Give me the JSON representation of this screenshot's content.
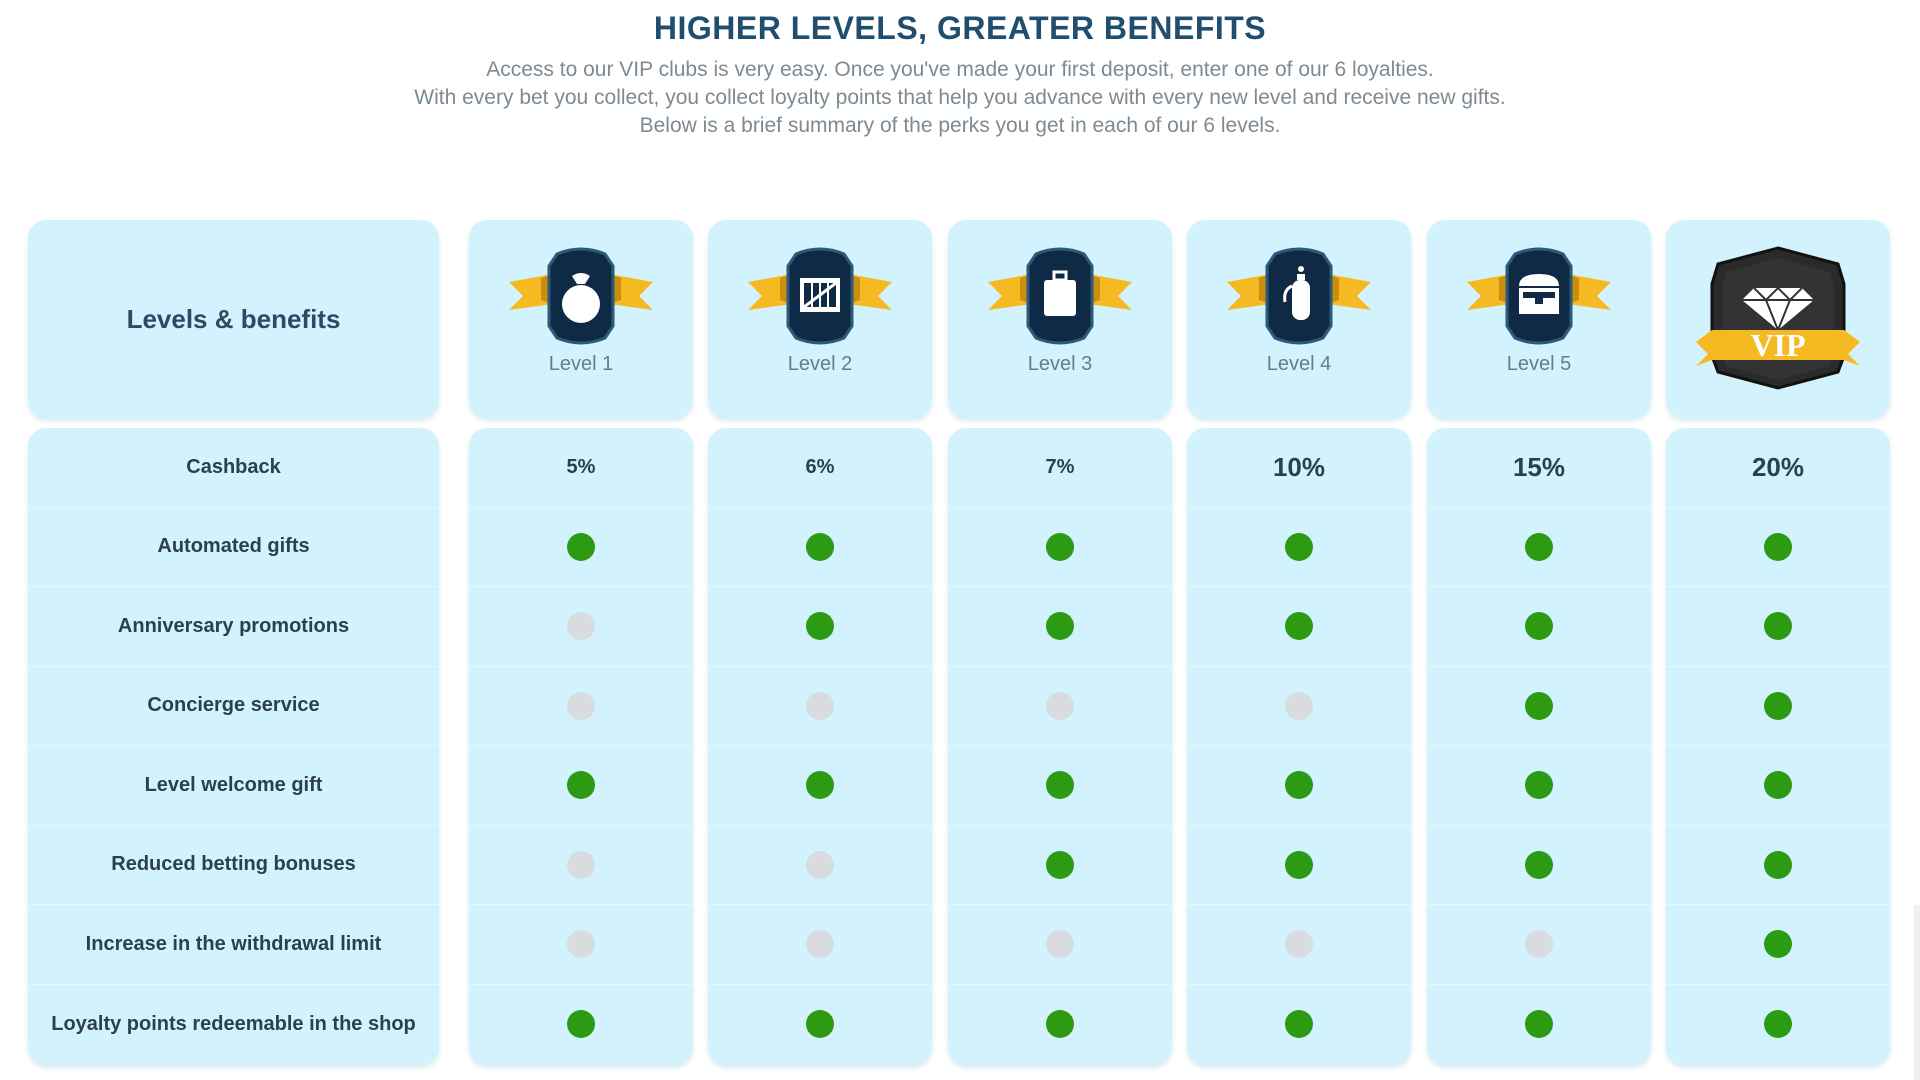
{
  "header": {
    "title": "HIGHER LEVELS, GREATER BENEFITS",
    "subtitle_lines": [
      "Access to our VIP clubs is very easy. Once you've made your first deposit, enter one of our 6 loyalties.",
      "With every bet you collect, you collect loyalty points that help you advance with every new level and receive new gifts.",
      "Below is a brief summary of the perks you get in each of our 6 levels."
    ]
  },
  "table": {
    "corner_label": "Levels & benefits",
    "benefits": [
      "Cashback",
      "Automated gifts",
      "Anniversary promotions",
      "Concierge service",
      "Level welcome gift",
      "Reduced betting bonuses",
      "Increase in the withdrawal limit",
      "Loyalty points redeemable in the shop"
    ],
    "levels": [
      {
        "label": "Level 1",
        "icon": "money-bag-icon",
        "cashback": "5%",
        "features": [
          true,
          false,
          false,
          true,
          false,
          false,
          true
        ]
      },
      {
        "label": "Level 2",
        "icon": "crate-icon",
        "cashback": "6%",
        "features": [
          true,
          true,
          false,
          true,
          false,
          false,
          true
        ]
      },
      {
        "label": "Level 3",
        "icon": "suitcase-icon",
        "cashback": "7%",
        "features": [
          true,
          true,
          false,
          true,
          true,
          false,
          true
        ]
      },
      {
        "label": "Level 4",
        "icon": "oxygen-tank-icon",
        "cashback": "10%",
        "features": [
          true,
          true,
          false,
          true,
          true,
          false,
          true
        ]
      },
      {
        "label": "Level 5",
        "icon": "treasure-chest-icon",
        "cashback": "15%",
        "features": [
          true,
          true,
          true,
          true,
          true,
          false,
          true
        ]
      },
      {
        "label": "",
        "icon": "vip-diamond-icon",
        "badge_text": "VIP",
        "cashback": "20%",
        "features": [
          true,
          true,
          true,
          true,
          true,
          true,
          true
        ]
      }
    ]
  },
  "colors": {
    "enabled": "#2c9a12",
    "disabled": "#d8dcde",
    "card": "#d2f3fd",
    "ribbon": "#f5b921",
    "badge": "#0f2a44"
  }
}
